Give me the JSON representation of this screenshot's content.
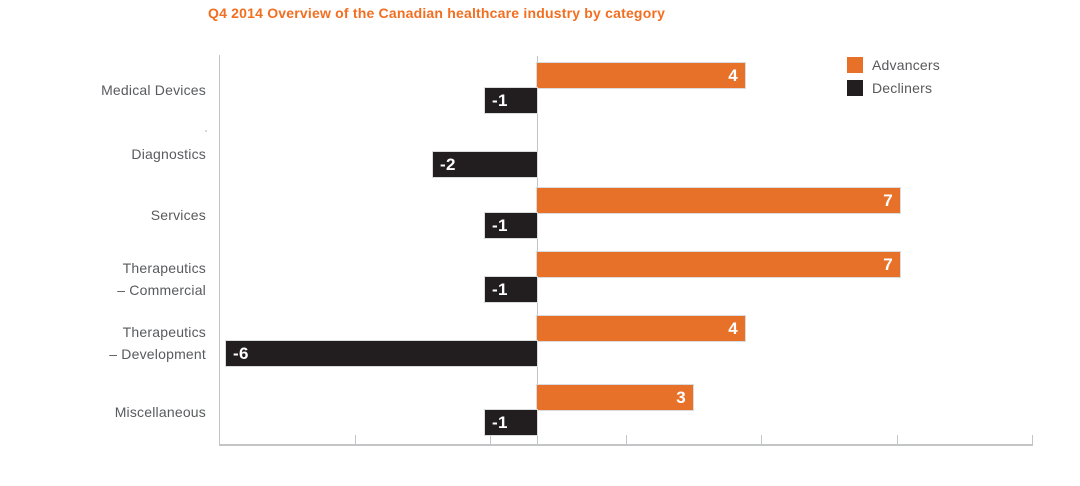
{
  "chart_data": {
    "type": "bar",
    "orientation": "horizontal",
    "title": "Q4 2014 Overview of the Canadian healthcare industry by category",
    "title_color": "#F26E21",
    "categories": [
      "Medical Devices",
      "Diagnostics",
      "Services",
      "Therapeutics – Commercial",
      "Therapeutics – Development",
      "Miscellaneous"
    ],
    "category_label_lines": [
      [
        "Medical Devices"
      ],
      [
        "Diagnostics"
      ],
      [
        "Services"
      ],
      [
        "Therapeutics",
        "– Commercial"
      ],
      [
        "Therapeutics",
        "– Development"
      ],
      [
        "Miscellaneous"
      ]
    ],
    "series": [
      {
        "name": "Advancers",
        "color": "#E8712A",
        "values": [
          4,
          0,
          7,
          7,
          4,
          3
        ]
      },
      {
        "name": "Decliners",
        "color": "#221E1F",
        "values": [
          -1,
          -2,
          -1,
          -1,
          -6,
          -1
        ]
      }
    ],
    "value_labels_shown": true,
    "value_label_color": "#ffffff",
    "x_axis": {
      "min": -6.1,
      "max": 9.5,
      "tick_labels": [],
      "tick_count": 7,
      "zero_line": true,
      "gridlines": false
    },
    "y_axis": {
      "label": ""
    },
    "axis_color": "#C3C4C6",
    "legend_position": "top-right",
    "background": "#ffffff"
  }
}
